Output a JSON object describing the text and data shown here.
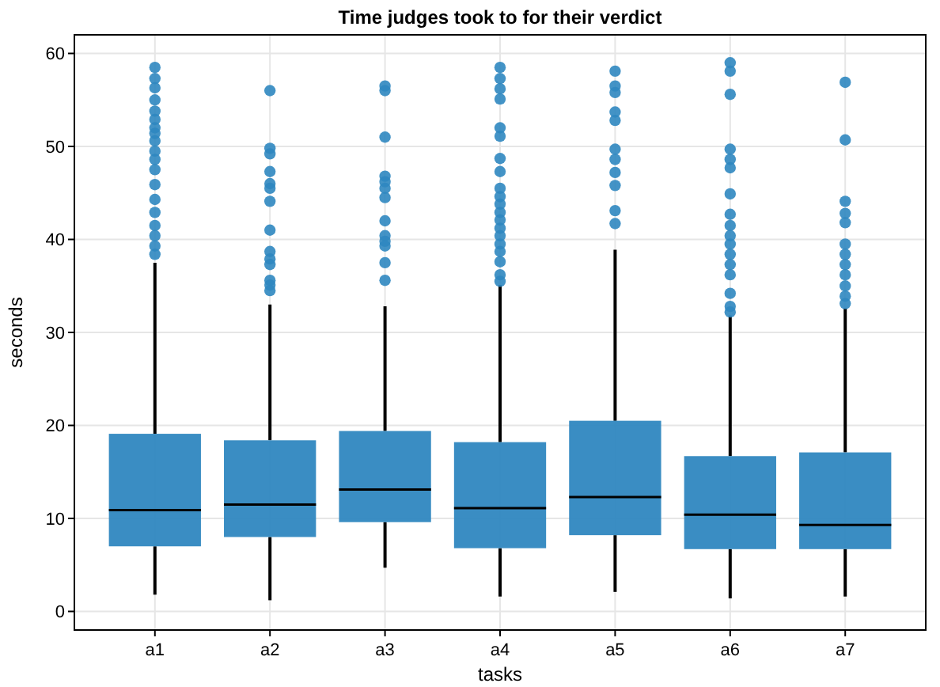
{
  "chart_data": {
    "type": "box",
    "title": "Time judges took to for their verdict",
    "xlabel": "tasks",
    "ylabel": "seconds",
    "categories": [
      "a1",
      "a2",
      "a3",
      "a4",
      "a5",
      "a6",
      "a7"
    ],
    "color": "#2f87c0",
    "ylim": [
      -2,
      62
    ],
    "yticks": [
      0,
      10,
      20,
      30,
      40,
      50,
      60
    ],
    "grid": true,
    "boxes": [
      {
        "low": 1.8,
        "q1": 7.0,
        "median": 10.9,
        "q3": 19.1,
        "high": 37.5,
        "outliers": [
          58.5,
          57.3,
          56.3,
          55.0,
          53.8,
          52.9,
          52.0,
          51.4,
          50.6,
          49.5,
          48.6,
          47.5,
          45.9,
          44.3,
          42.9,
          41.5,
          40.4,
          39.3,
          38.4
        ]
      },
      {
        "low": 1.2,
        "q1": 8.0,
        "median": 11.5,
        "q3": 18.4,
        "high": 33.0,
        "outliers": [
          56.0,
          49.8,
          49.2,
          47.3,
          46.0,
          45.5,
          44.1,
          41.0,
          38.7,
          37.9,
          37.3,
          35.6,
          35.1,
          34.5
        ]
      },
      {
        "low": 4.7,
        "q1": 9.6,
        "median": 13.1,
        "q3": 19.4,
        "high": 32.8,
        "outliers": [
          56.5,
          56.0,
          51.0,
          46.8,
          46.2,
          45.5,
          44.5,
          42.0,
          40.4,
          39.8,
          39.3,
          37.5,
          35.6
        ]
      },
      {
        "low": 1.6,
        "q1": 6.8,
        "median": 11.1,
        "q3": 18.2,
        "high": 35.1,
        "outliers": [
          58.5,
          57.3,
          56.2,
          55.1,
          52.0,
          51.1,
          48.7,
          47.3,
          45.5,
          44.6,
          43.8,
          42.9,
          42.1,
          41.2,
          40.4,
          39.5,
          38.7,
          37.6,
          36.2,
          35.5
        ]
      },
      {
        "low": 2.1,
        "q1": 8.2,
        "median": 12.3,
        "q3": 20.5,
        "high": 38.9,
        "outliers": [
          58.1,
          56.5,
          55.8,
          53.7,
          52.8,
          49.7,
          48.6,
          47.2,
          45.8,
          43.1,
          41.7
        ]
      },
      {
        "low": 1.4,
        "q1": 6.7,
        "median": 10.4,
        "q3": 16.7,
        "high": 31.8,
        "outliers": [
          59.0,
          58.1,
          55.6,
          49.7,
          48.6,
          47.7,
          44.9,
          42.7,
          41.5,
          40.4,
          39.5,
          38.4,
          37.3,
          36.2,
          34.2,
          32.8,
          32.2
        ]
      },
      {
        "low": 1.6,
        "q1": 6.7,
        "median": 9.3,
        "q3": 17.1,
        "high": 32.6,
        "outliers": [
          56.9,
          50.7,
          44.1,
          42.8,
          41.8,
          39.5,
          38.4,
          37.3,
          36.2,
          35.0,
          33.9,
          33.1
        ]
      }
    ]
  }
}
